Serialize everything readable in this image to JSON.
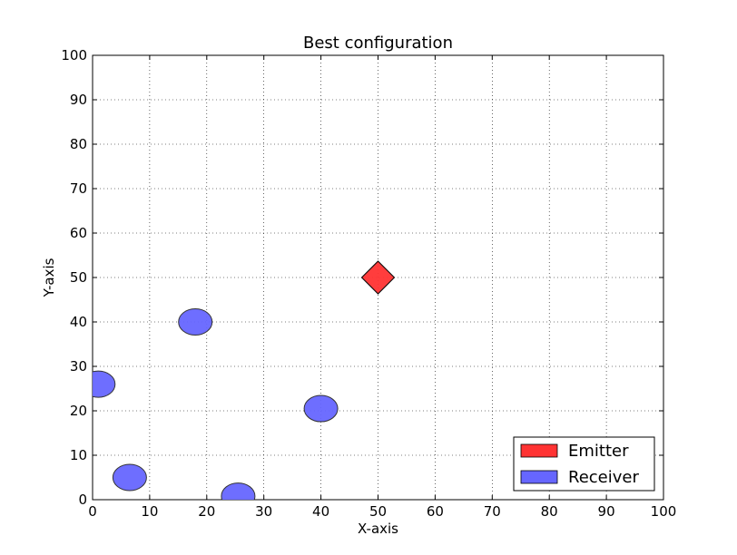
{
  "chart_data": {
    "type": "scatter",
    "title": "Best configuration",
    "xlabel": "X-axis",
    "ylabel": "Y-axis",
    "xlim": [
      0,
      100
    ],
    "ylim": [
      0,
      100
    ],
    "xticks": [
      0,
      10,
      20,
      30,
      40,
      50,
      60,
      70,
      80,
      90,
      100
    ],
    "yticks": [
      0,
      10,
      20,
      30,
      40,
      50,
      60,
      70,
      80,
      90,
      100
    ],
    "grid": true,
    "legend_position": "bottom-right",
    "series": [
      {
        "name": "Emitter",
        "marker": "diamond",
        "color": "#ff3333",
        "points": [
          {
            "x": 50,
            "y": 50
          }
        ]
      },
      {
        "name": "Receiver",
        "marker": "circle",
        "color": "#6666ff",
        "points": [
          {
            "x": 18,
            "y": 40
          },
          {
            "x": 1,
            "y": 26
          },
          {
            "x": 40,
            "y": 20.5
          },
          {
            "x": 6.5,
            "y": 5
          },
          {
            "x": 25.5,
            "y": 0.8
          }
        ]
      }
    ]
  }
}
